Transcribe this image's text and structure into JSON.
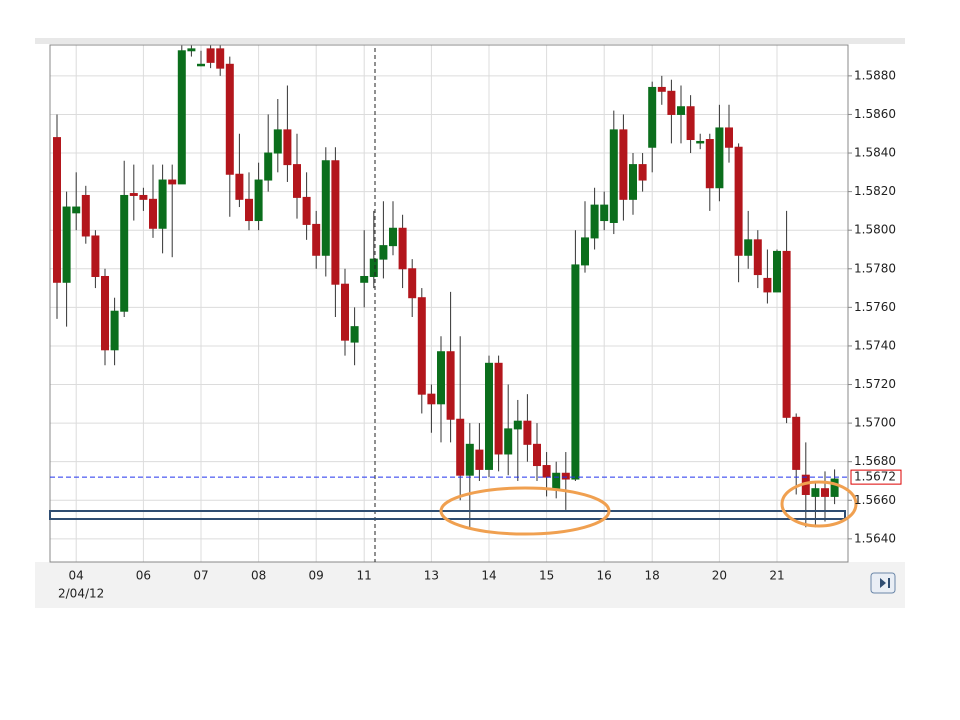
{
  "chart_data": {
    "type": "candlestick",
    "x_start_label": "2/04/12",
    "categories": [
      null,
      null,
      "04",
      null,
      null,
      null,
      null,
      null,
      null,
      "06",
      null,
      null,
      null,
      null,
      null,
      "07",
      null,
      null,
      null,
      null,
      null,
      "08",
      null,
      null,
      null,
      null,
      null,
      "09",
      null,
      null,
      null,
      null,
      "11",
      null,
      null,
      null,
      null,
      null,
      null,
      "13",
      null,
      null,
      null,
      null,
      null,
      "14",
      null,
      null,
      null,
      null,
      null,
      "15",
      null,
      null,
      null,
      null,
      null,
      "16",
      null,
      null,
      null,
      null,
      "18",
      null,
      null,
      null,
      null,
      null,
      null,
      "20",
      null,
      null,
      null,
      null,
      null,
      "21",
      null,
      null,
      null,
      null,
      null,
      null
    ],
    "open": [
      1.5848,
      1.5773,
      1.5809,
      1.5818,
      1.5797,
      1.5776,
      1.5738,
      1.5758,
      1.5819,
      1.5818,
      1.5816,
      1.5801,
      1.5826,
      1.5824,
      1.5893,
      1.5886,
      1.5894,
      1.5894,
      1.5886,
      1.5829,
      1.5816,
      1.5805,
      1.5826,
      1.584,
      1.5852,
      1.5834,
      1.5817,
      1.5803,
      1.5787,
      1.5836,
      1.5772,
      1.5742,
      1.5773,
      1.5776,
      1.5785,
      1.5792,
      1.5801,
      1.578,
      1.5765,
      1.5715,
      1.571,
      1.5737,
      1.5702,
      1.5673,
      1.5686,
      1.5676,
      1.5731,
      1.5684,
      1.5697,
      1.5701,
      1.5689,
      1.5678,
      1.5666,
      1.5674,
      1.5671,
      1.5782,
      1.5796,
      1.5805,
      1.5804,
      1.5852,
      1.5816,
      1.5834,
      1.5843,
      1.5874,
      1.5872,
      1.586,
      1.5864,
      1.5846,
      1.5847,
      1.5822,
      1.5853,
      1.5843,
      1.5787,
      1.5795,
      1.5775,
      1.5768,
      1.5789,
      1.5703,
      1.5673,
      1.5662,
      1.5666,
      1.5662
    ],
    "high": [
      1.586,
      1.582,
      1.583,
      1.5823,
      1.58,
      1.578,
      1.5765,
      1.5836,
      1.5834,
      1.5822,
      1.5834,
      1.5834,
      1.5834,
      1.5896,
      1.5896,
      1.5893,
      1.5896,
      1.5896,
      1.589,
      1.585,
      1.583,
      1.5835,
      1.586,
      1.5868,
      1.5875,
      1.585,
      1.583,
      1.581,
      1.5843,
      1.5843,
      1.578,
      1.576,
      1.58,
      1.581,
      1.5815,
      1.5815,
      1.5808,
      1.5785,
      1.577,
      1.572,
      1.5745,
      1.5768,
      1.5745,
      1.57,
      1.57,
      1.5735,
      1.5735,
      1.572,
      1.5712,
      1.5715,
      1.57,
      1.5685,
      1.568,
      1.5685,
      1.58,
      1.5815,
      1.5822,
      1.582,
      1.5862,
      1.586,
      1.584,
      1.584,
      1.5877,
      1.588,
      1.5878,
      1.5875,
      1.587,
      1.585,
      1.585,
      1.5865,
      1.5865,
      1.5845,
      1.581,
      1.58,
      1.579,
      1.579,
      1.581,
      1.5705,
      1.569,
      1.567,
      1.5675,
      1.5676
    ],
    "low": [
      1.5754,
      1.575,
      1.58,
      1.5793,
      1.577,
      1.573,
      1.573,
      1.5755,
      1.5805,
      1.581,
      1.5796,
      1.5788,
      1.5786,
      1.5824,
      1.589,
      1.5885,
      1.5884,
      1.588,
      1.5807,
      1.5812,
      1.58,
      1.58,
      1.582,
      1.583,
      1.5825,
      1.5806,
      1.5795,
      1.578,
      1.5776,
      1.5755,
      1.5735,
      1.573,
      1.576,
      1.577,
      1.5775,
      1.5787,
      1.577,
      1.5755,
      1.5705,
      1.5695,
      1.569,
      1.569,
      1.566,
      1.5646,
      1.567,
      1.5672,
      1.5675,
      1.5673,
      1.567,
      1.568,
      1.567,
      1.5662,
      1.5661,
      1.5655,
      1.567,
      1.5778,
      1.579,
      1.58,
      1.5798,
      1.5805,
      1.5808,
      1.582,
      1.583,
      1.5865,
      1.5845,
      1.5845,
      1.584,
      1.5842,
      1.581,
      1.5815,
      1.5835,
      1.5773,
      1.578,
      1.577,
      1.5762,
      1.5768,
      1.57,
      1.5663,
      1.5646,
      1.5646,
      1.5649,
      1.5658
    ],
    "close": [
      1.5773,
      1.5812,
      1.5812,
      1.5797,
      1.5776,
      1.5738,
      1.5758,
      1.5818,
      1.5818,
      1.5816,
      1.5801,
      1.5826,
      1.5824,
      1.5893,
      1.5894,
      1.5886,
      1.5887,
      1.5884,
      1.5829,
      1.5816,
      1.5805,
      1.5826,
      1.584,
      1.5852,
      1.5834,
      1.5817,
      1.5803,
      1.5787,
      1.5836,
      1.5772,
      1.5743,
      1.575,
      1.5776,
      1.5785,
      1.5792,
      1.5801,
      1.578,
      1.5765,
      1.5715,
      1.571,
      1.5737,
      1.5702,
      1.5673,
      1.5689,
      1.5676,
      1.5731,
      1.5684,
      1.5697,
      1.5701,
      1.5689,
      1.5678,
      1.5672,
      1.5674,
      1.5671,
      1.5782,
      1.5796,
      1.5813,
      1.5813,
      1.5852,
      1.5816,
      1.5834,
      1.5826,
      1.5874,
      1.5872,
      1.586,
      1.5864,
      1.5847,
      1.5846,
      1.5822,
      1.5853,
      1.5843,
      1.5787,
      1.5795,
      1.5777,
      1.5768,
      1.5789,
      1.5703,
      1.5676,
      1.5663,
      1.5666,
      1.5662,
      1.5671
    ],
    "up_color": "#0b6e1c",
    "down_color": "#b3161c",
    "current_price": 1.5672,
    "current_price_color": "#2233ee",
    "ylim": [
      1.5628,
      1.5896
    ],
    "yticks": [
      {
        "value": 1.564,
        "label": "1.5640"
      },
      {
        "value": 1.566,
        "label": "1.5660"
      },
      {
        "value": 1.568,
        "label": "1.5680"
      },
      {
        "value": 1.57,
        "label": "1.5700"
      },
      {
        "value": 1.572,
        "label": "1.5720"
      },
      {
        "value": 1.574,
        "label": "1.5740"
      },
      {
        "value": 1.576,
        "label": "1.5760"
      },
      {
        "value": 1.578,
        "label": "1.5780"
      },
      {
        "value": 1.58,
        "label": "1.5800"
      },
      {
        "value": 1.582,
        "label": "1.5820"
      },
      {
        "value": 1.584,
        "label": "1.5840"
      },
      {
        "value": 1.586,
        "label": "1.5860"
      },
      {
        "value": 1.588,
        "label": "1.5880"
      }
    ],
    "grid": true
  }
}
